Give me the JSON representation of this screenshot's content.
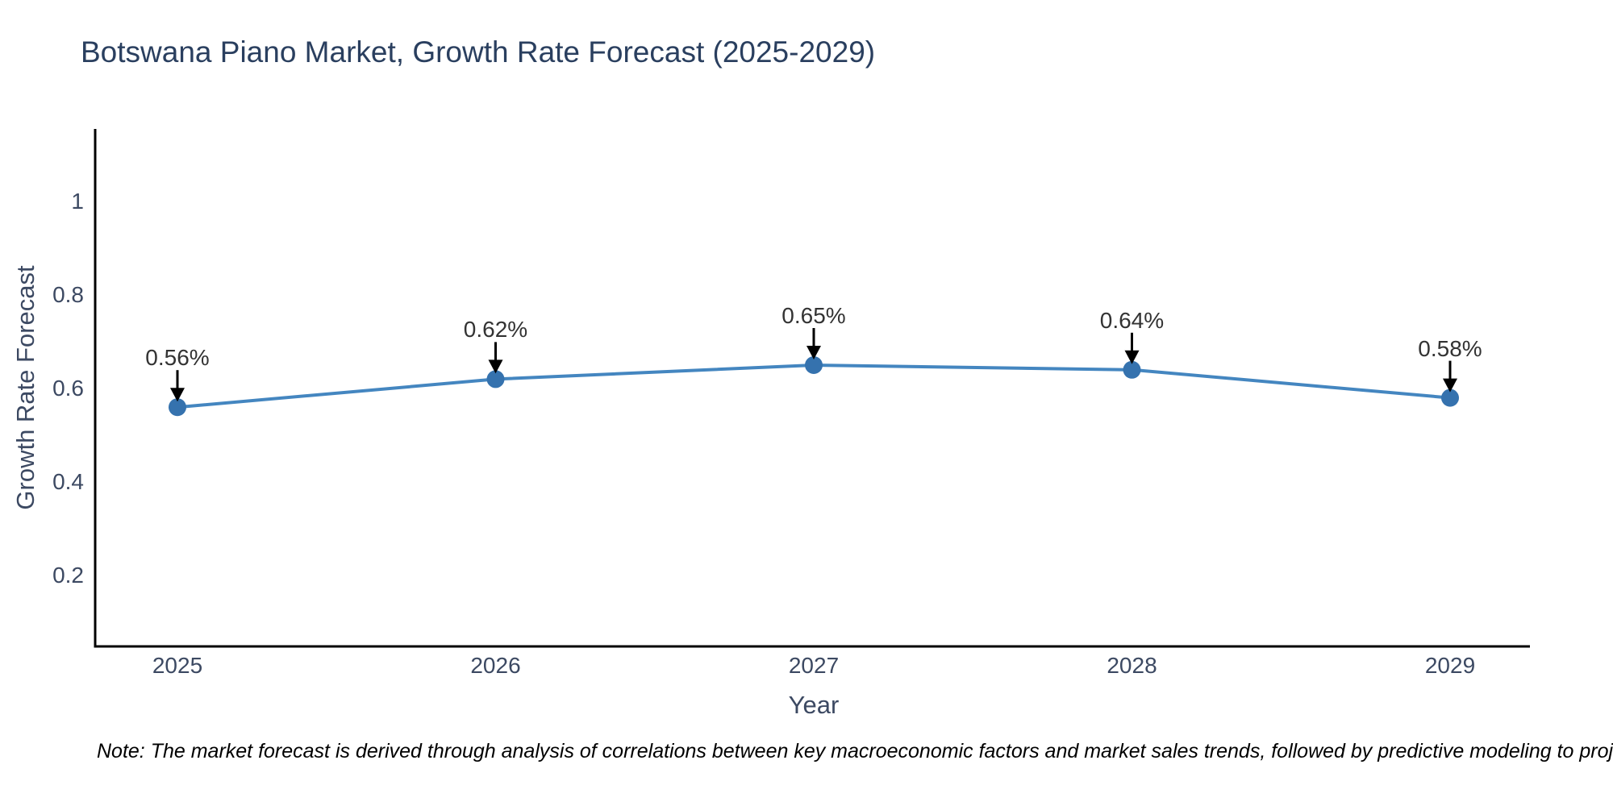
{
  "title": "Botswana Piano Market, Growth Rate Forecast (2025-2029)",
  "note": "Note: The market forecast is derived through analysis of correlations between key macroeconomic factors and market sales trends, followed by predictive modeling to project future sales",
  "chart_data": {
    "type": "line",
    "title": "Botswana Piano Market, Growth Rate Forecast (2025-2029)",
    "xlabel": "Year",
    "ylabel": "Growth Rate Forecast",
    "categories": [
      "2025",
      "2026",
      "2027",
      "2028",
      "2029"
    ],
    "values": [
      0.56,
      0.62,
      0.65,
      0.64,
      0.58
    ],
    "point_labels": [
      "0.56%",
      "0.62%",
      "0.65%",
      "0.64%",
      "0.58%"
    ],
    "ytick_values": [
      0.2,
      0.4,
      0.6,
      0.8,
      1
    ],
    "ytick_labels": [
      "0.2",
      "0.4",
      "0.6",
      "0.8",
      "1"
    ],
    "ylim": [
      0.05,
      1.22
    ],
    "grid": false,
    "legend": "none",
    "marker_style": "circle",
    "annotation_arrows": true,
    "colors": {
      "line": "#4486c0",
      "marker": "#3572ae",
      "axis": "#000000",
      "title_text": "#2a3f5f",
      "tick_text": "#3c4962",
      "annotation_text": "#333333"
    }
  }
}
